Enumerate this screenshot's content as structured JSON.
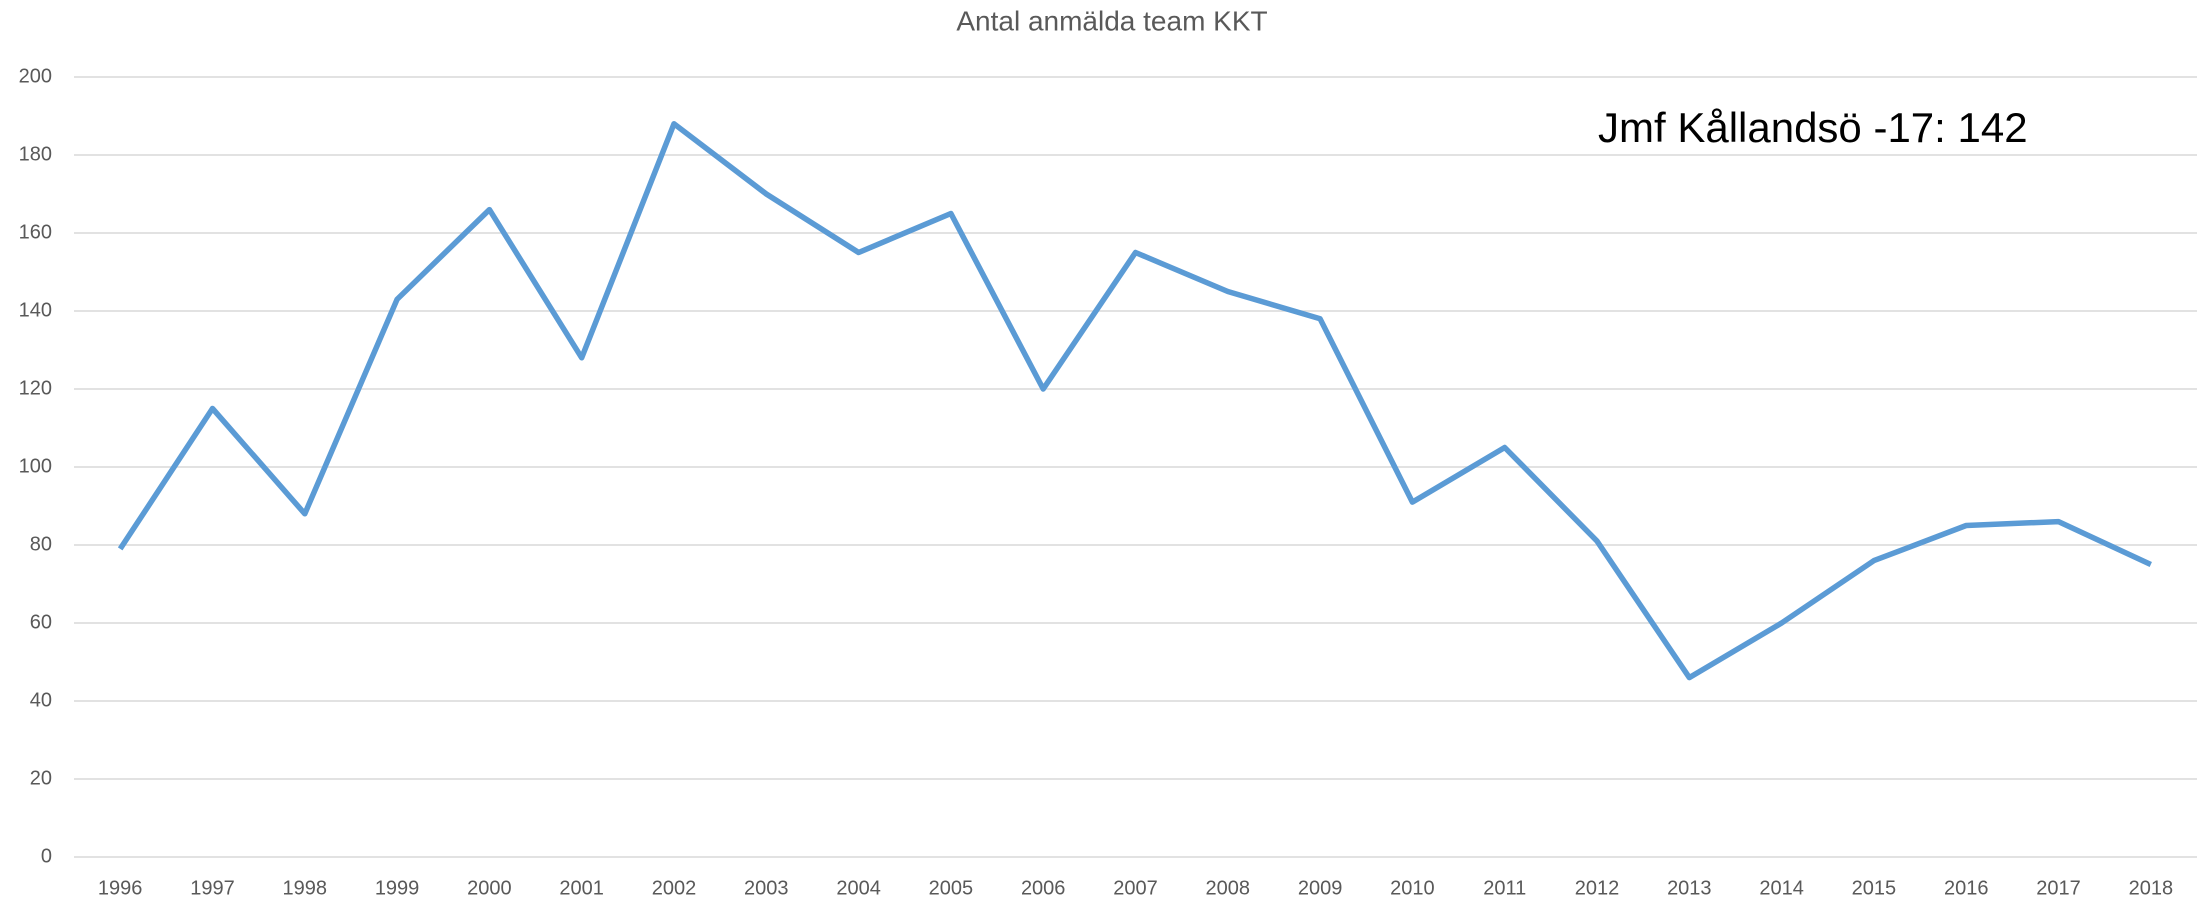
{
  "chart_data": {
    "type": "line",
    "title": "Antal anmälda team KKT",
    "annotation": "Jmf Kållandsö -17: 142",
    "categories": [
      "1996",
      "1997",
      "1998",
      "1999",
      "2000",
      "2001",
      "2002",
      "2003",
      "2004",
      "2005",
      "2006",
      "2007",
      "2008",
      "2009",
      "2010",
      "2011",
      "2012",
      "2013",
      "2014",
      "2015",
      "2016",
      "2017",
      "2018"
    ],
    "series": [
      {
        "name": "Antal anmälda team",
        "color": "#5b9bd5",
        "values": [
          79,
          115,
          88,
          143,
          166,
          128,
          188,
          170,
          155,
          165,
          120,
          155,
          145,
          138,
          91,
          105,
          81,
          46,
          60,
          76,
          85,
          86,
          75
        ]
      }
    ],
    "ylim": [
      0,
      200
    ],
    "yticks": [
      0,
      20,
      40,
      60,
      80,
      100,
      120,
      140,
      160,
      180,
      200
    ],
    "grid": true
  }
}
